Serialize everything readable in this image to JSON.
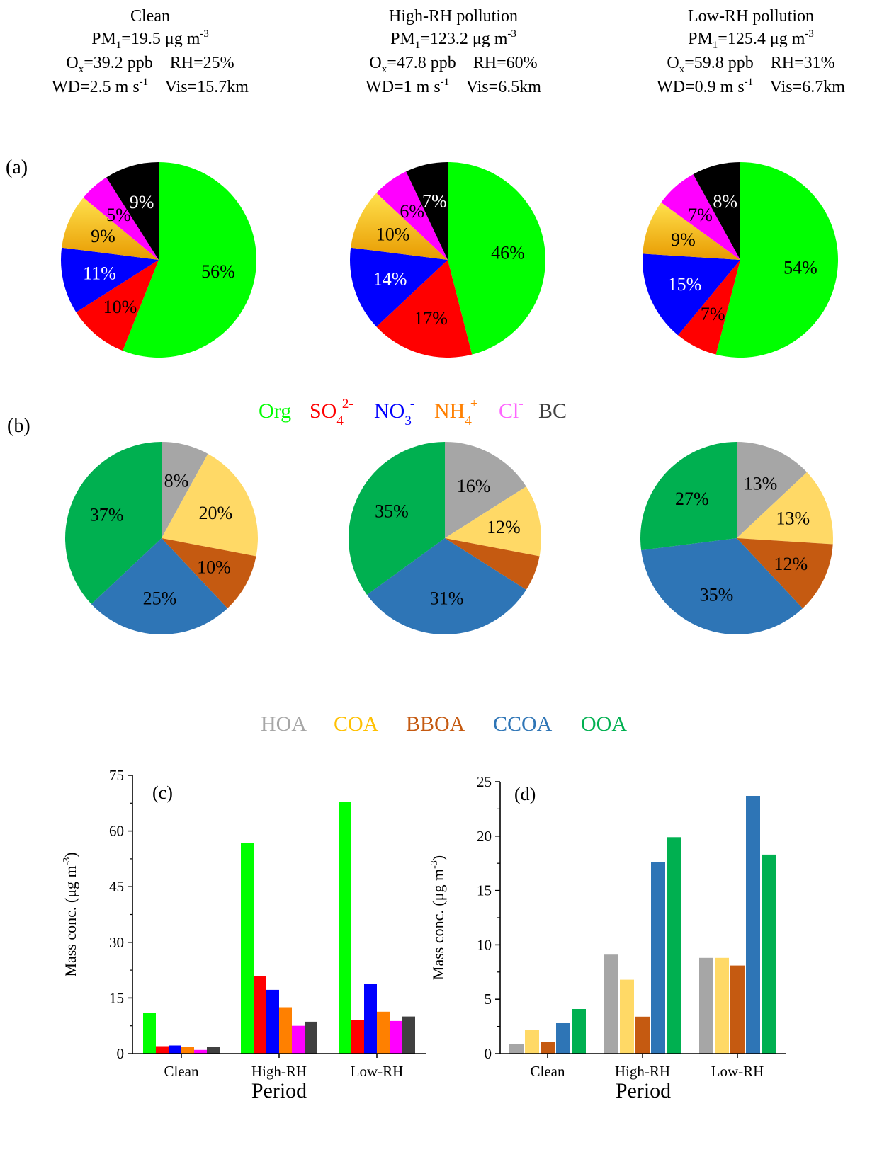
{
  "panel_labels": {
    "a": "(a)",
    "b": "(b)",
    "c": "(c)",
    "d": "(d)"
  },
  "conditions": [
    {
      "title": "Clean",
      "pm1": "19.5",
      "ox": "39.2",
      "rh": "25",
      "wd": "2.5",
      "vis": "15.7"
    },
    {
      "title": "High-RH pollution",
      "pm1": "123.2",
      "ox": "47.8",
      "rh": "60",
      "wd": "1",
      "vis": "6.5"
    },
    {
      "title": "Low-RH pollution",
      "pm1": "125.4",
      "ox": "59.8",
      "rh": "31",
      "wd": "0.9",
      "vis": "6.7"
    }
  ],
  "units": {
    "pm1_prefix": "PM",
    "pm1_sub": "1",
    "conc": "μg m",
    "conc_exp": "-3",
    "ox_prefix": "O",
    "ox_sub": "x",
    "ppb": "ppb",
    "rh_prefix": "RH=",
    "percent": "%",
    "wd_prefix": "WD=",
    "ms": "m s",
    "ms_exp": "-1",
    "vis_prefix": "Vis=",
    "km": "km"
  },
  "legend_a": [
    {
      "base": "Org",
      "sup": "",
      "sub": "",
      "color": "#00ff00"
    },
    {
      "base": "SO",
      "sup": "2-",
      "sub": "4",
      "color": "#ff0000"
    },
    {
      "base": "NO",
      "sup": "-",
      "sub": "3",
      "color": "#0000ff"
    },
    {
      "base": "NH",
      "sup": "+",
      "sub": "4",
      "color": "#ff8000"
    },
    {
      "base": "Cl",
      "sup": "-",
      "sub": "",
      "color": "#ff66ff"
    },
    {
      "base": "BC",
      "sup": "",
      "sub": "",
      "color": "#404040"
    }
  ],
  "legend_b": [
    {
      "label": "HOA",
      "color": "#a6a6a6"
    },
    {
      "label": "COA",
      "color": "#ffc000"
    },
    {
      "label": "BBOA",
      "color": "#c55a11"
    },
    {
      "label": "CCOA",
      "color": "#2e75b6"
    },
    {
      "label": "OOA",
      "color": "#00b050"
    }
  ],
  "chart_data": [
    {
      "panel": "a",
      "type": "pie",
      "categories": [
        "Org",
        "SO4 2-",
        "NO3 -",
        "NH4 +",
        "Cl -",
        "BC"
      ],
      "colors": [
        "#00ff00",
        "#ff0000",
        "#0000ff",
        "#ffc000",
        "#ff00ff",
        "#000000"
      ],
      "pies": [
        {
          "values": [
            56,
            10,
            11,
            9,
            5,
            9
          ],
          "labels": [
            "56%",
            "10%",
            "11%",
            "9%",
            "5%",
            "9%"
          ]
        },
        {
          "values": [
            46,
            17,
            14,
            10,
            6,
            7
          ],
          "labels": [
            "46%",
            "17%",
            "14%",
            "10%",
            "6%",
            "7%"
          ]
        },
        {
          "values": [
            54,
            7,
            15,
            9,
            7,
            8
          ],
          "labels": [
            "54%",
            "7%",
            "15%",
            "9%",
            "7%",
            "8%"
          ]
        }
      ]
    },
    {
      "panel": "b",
      "type": "pie",
      "categories": [
        "HOA",
        "COA",
        "BBOA",
        "CCOA",
        "OOA"
      ],
      "colors": [
        "#a6a6a6",
        "#ffd966",
        "#c55a11",
        "#2e75b6",
        "#00b050"
      ],
      "pies": [
        {
          "values": [
            8,
            20,
            10,
            25,
            37
          ],
          "labels": [
            "8%",
            "20%",
            "10%",
            "25%",
            "37%"
          ]
        },
        {
          "values": [
            16,
            12,
            6,
            31,
            35
          ],
          "labels": [
            "16%",
            "12%",
            "",
            "31%",
            "35%"
          ]
        },
        {
          "values": [
            13,
            13,
            12,
            35,
            27
          ],
          "labels": [
            "13%",
            "13%",
            "12%",
            "35%",
            "27%"
          ]
        }
      ]
    },
    {
      "panel": "c",
      "type": "bar",
      "categories": [
        "Clean",
        "High-RH",
        "Low-RH"
      ],
      "series": [
        {
          "values": [
            11.0,
            56.7,
            67.8
          ],
          "color": "#00ff00"
        },
        {
          "values": [
            2.0,
            21.0,
            9.0
          ],
          "color": "#ff0000"
        },
        {
          "values": [
            2.2,
            17.2,
            18.8
          ],
          "color": "#0000ff"
        },
        {
          "values": [
            1.8,
            12.5,
            11.3
          ],
          "color": "#ff8000"
        },
        {
          "values": [
            1.0,
            7.5,
            8.8
          ],
          "color": "#ff00ff"
        },
        {
          "values": [
            1.8,
            8.6,
            10.0
          ],
          "color": "#404040"
        }
      ],
      "xlabel": "Period",
      "ylabel": "Mass conc. (μg m",
      "ylabel_exp": "-3",
      "ylabel_end": ")",
      "ylim": [
        0,
        75
      ],
      "yticks": [
        0,
        15,
        30,
        45,
        60,
        75
      ],
      "ytick_labels": [
        "0",
        "15",
        "30",
        "45",
        "60",
        "75"
      ]
    },
    {
      "panel": "d",
      "type": "bar",
      "categories": [
        "Clean",
        "High-RH",
        "Low-RH"
      ],
      "series": [
        {
          "values": [
            0.9,
            9.1,
            8.8
          ],
          "color": "#a6a6a6"
        },
        {
          "values": [
            2.2,
            6.8,
            8.8
          ],
          "color": "#ffd966"
        },
        {
          "values": [
            1.1,
            3.4,
            8.1
          ],
          "color": "#c55a11"
        },
        {
          "values": [
            2.8,
            17.6,
            23.7
          ],
          "color": "#2e75b6"
        },
        {
          "values": [
            4.1,
            19.9,
            18.3
          ],
          "color": "#00b050"
        }
      ],
      "xlabel": "Period",
      "ylabel": "Mass conc. (μg m",
      "ylabel_exp": "-3",
      "ylabel_end": ")",
      "ylim": [
        0,
        25
      ],
      "yticks": [
        0,
        5,
        10,
        15,
        20,
        25
      ],
      "ytick_labels": [
        "0",
        "5",
        "10",
        "15",
        "20",
        "25"
      ]
    }
  ]
}
